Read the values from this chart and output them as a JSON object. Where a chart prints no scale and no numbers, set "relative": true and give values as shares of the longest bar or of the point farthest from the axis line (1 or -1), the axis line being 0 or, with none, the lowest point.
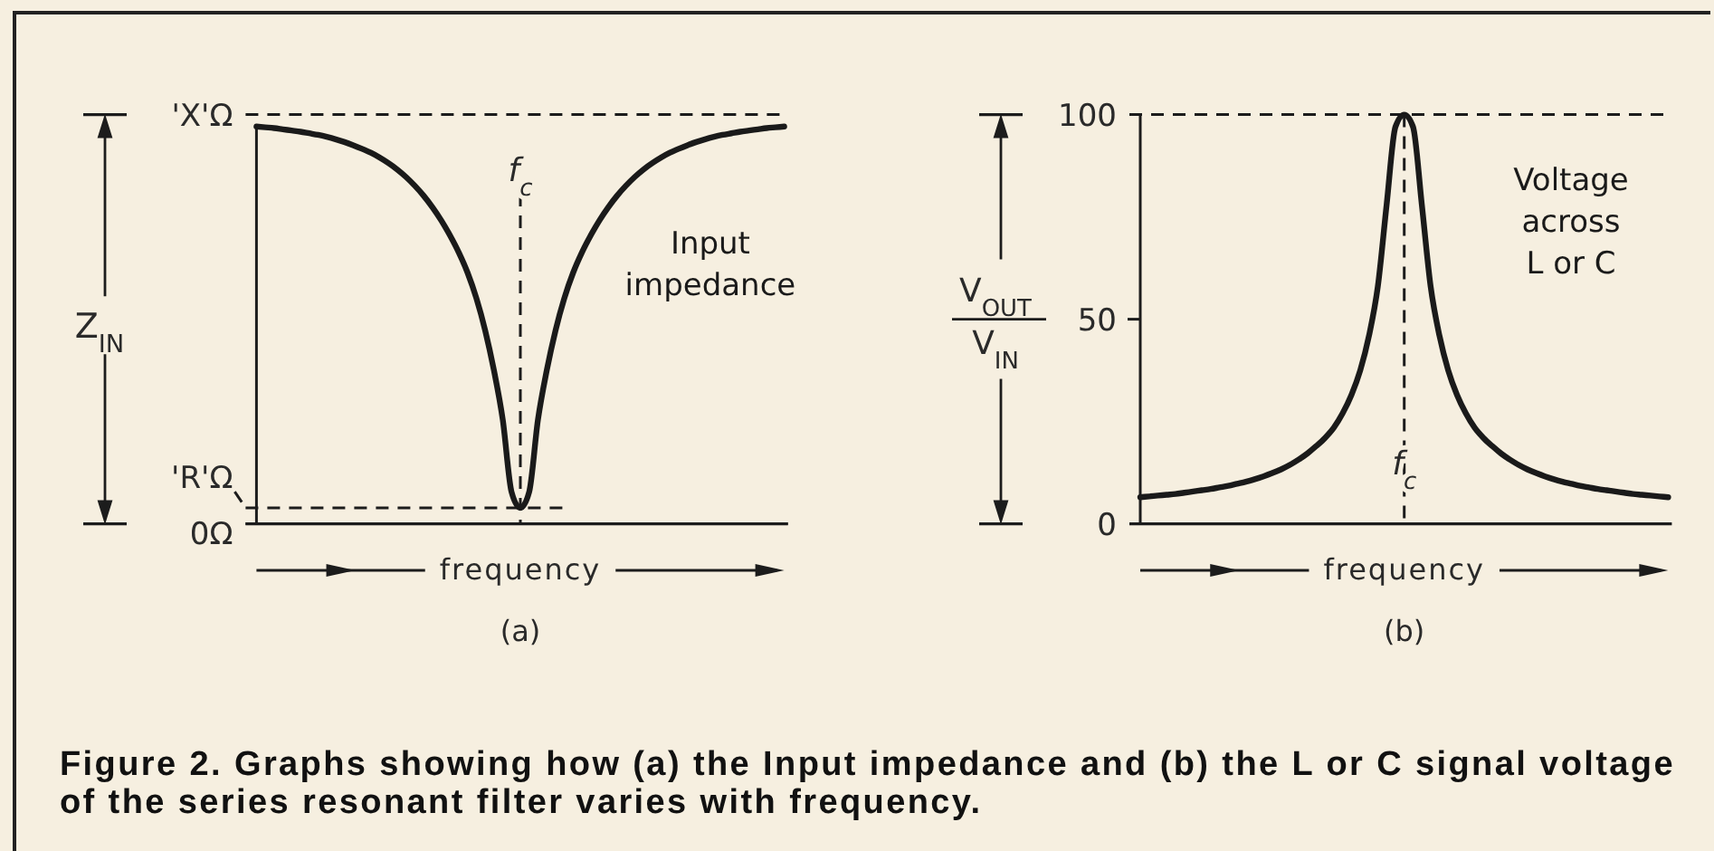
{
  "chart_data": [
    {
      "type": "line",
      "title": "(a)",
      "xlabel": "frequency",
      "ylabel": "Z$_{IN}$",
      "relative": true,
      "categories": [
        null,
        null,
        null,
        null,
        null,
        null,
        null,
        null,
        null,
        null,
        null,
        null,
        null,
        null,
        null,
        null,
        null,
        null,
        null,
        null,
        null,
        null,
        null,
        null,
        null,
        null,
        null,
        null,
        null,
        null,
        null,
        null,
        null,
        null,
        null,
        null,
        null,
        null,
        null,
        null,
        null,
        null,
        null,
        null,
        null,
        null,
        null,
        null,
        null,
        null,
        null,
        null,
        null,
        null,
        null,
        null,
        null,
        null,
        null,
        null,
        null
      ],
      "series": [
        {
          "name": "Input impedance",
          "color": "#1a1a1a",
          "values": [
            1,
            0.998,
            0.996,
            0.993,
            0.99,
            0.987,
            0.983,
            0.979,
            0.974,
            0.968,
            0.961,
            0.953,
            0.944,
            0.934,
            0.922,
            0.908,
            0.892,
            0.873,
            0.851,
            0.826,
            0.797,
            0.764,
            0.726,
            0.683,
            0.632,
            0.568,
            0.487,
            0.386,
            0.262,
            0.08,
            0.04,
            0.08,
            0.262,
            0.386,
            0.487,
            0.568,
            0.632,
            0.683,
            0.726,
            0.764,
            0.797,
            0.826,
            0.851,
            0.873,
            0.892,
            0.908,
            0.922,
            0.934,
            0.944,
            0.953,
            0.961,
            0.968,
            0.974,
            0.979,
            0.983,
            0.987,
            0.99,
            0.993,
            0.996,
            0.998,
            1
          ]
        }
      ],
      "ref_lines": [
        {
          "axis": "y",
          "value": 1.03,
          "label": "'X'Ω",
          "line_style": "dashed"
        },
        {
          "axis": "y",
          "value": 0.04,
          "label": "'R'Ω",
          "line_style": "dashed"
        },
        {
          "axis": "y",
          "value": 0,
          "label": "0Ω",
          "line_style": "solid"
        }
      ],
      "annotations": [
        {
          "text": "f$_{c}$"
        }
      ]
    },
    {
      "type": "line",
      "title": "(b)",
      "xlabel": "frequency",
      "ylabel": "V$_{OUT}$\nV$_{IN}$",
      "categories": [
        null,
        null,
        null,
        null,
        null,
        null,
        null,
        null,
        null,
        null,
        null,
        null,
        null,
        null,
        null,
        null,
        null,
        null,
        null,
        null,
        null,
        null,
        null,
        null,
        null,
        null,
        null,
        null,
        null,
        null,
        null,
        null,
        null,
        null,
        null,
        null,
        null,
        null,
        null,
        null,
        null,
        null,
        null,
        null,
        null,
        null,
        null,
        null,
        null,
        null,
        null,
        null,
        null,
        null,
        null,
        null,
        null,
        null,
        null,
        null,
        null
      ],
      "series": [
        {
          "name": "Voltage across L or C",
          "color": "#1a1a1a",
          "values": [
            6.5,
            6.7,
            6.9,
            7.1,
            7.3,
            7.6,
            7.9,
            8.2,
            8.5,
            8.9,
            9.3,
            9.8,
            10.3,
            10.9,
            11.6,
            12.4,
            13.3,
            14.4,
            15.7,
            17.2,
            19,
            21,
            23.5,
            27,
            31.5,
            37.5,
            46,
            58,
            78,
            97,
            100,
            97,
            78,
            58,
            46,
            37.5,
            31.5,
            27,
            23.5,
            21,
            19,
            17.2,
            15.7,
            14.4,
            13.3,
            12.4,
            11.6,
            10.9,
            10.3,
            9.8,
            9.3,
            8.9,
            8.5,
            8.2,
            7.9,
            7.6,
            7.3,
            7.1,
            6.9,
            6.7,
            6.5
          ]
        }
      ],
      "ylim": [
        0,
        100
      ],
      "yticks": [
        0,
        50,
        100
      ],
      "annotations": [
        {
          "text": "f$_{c}$"
        },
        "Figure 2. Graphs showing how (a) the Input impedance and (b) the L or C signal voltage of the series resonant filter varies with frequency."
      ]
    }
  ]
}
